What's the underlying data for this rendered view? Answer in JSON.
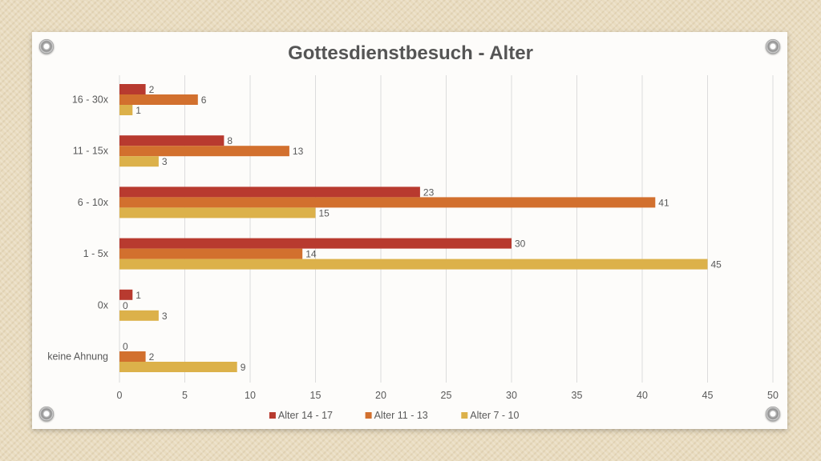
{
  "chart_data": {
    "type": "bar",
    "orientation": "horizontal",
    "title": "Gottesdienstbesuch - Alter",
    "categories": [
      "16 - 30x",
      "11 - 15x",
      "6 - 10x",
      "1 - 5x",
      "0x",
      "keine Ahnung"
    ],
    "series": [
      {
        "name": "Alter 14 - 17",
        "color": "#b83a2f",
        "values": [
          2,
          8,
          23,
          30,
          1,
          0
        ]
      },
      {
        "name": "Alter 11 - 13",
        "color": "#d2702e",
        "values": [
          6,
          13,
          41,
          14,
          0,
          2
        ]
      },
      {
        "name": "Alter 7 - 10",
        "color": "#dcb14a",
        "values": [
          1,
          3,
          15,
          45,
          3,
          9
        ]
      }
    ],
    "xlim": [
      0,
      50
    ],
    "xticks": [
      0,
      5,
      10,
      15,
      20,
      25,
      30,
      35,
      40,
      45,
      50
    ],
    "grid": true,
    "data_labels": true,
    "legend_position": "bottom"
  }
}
